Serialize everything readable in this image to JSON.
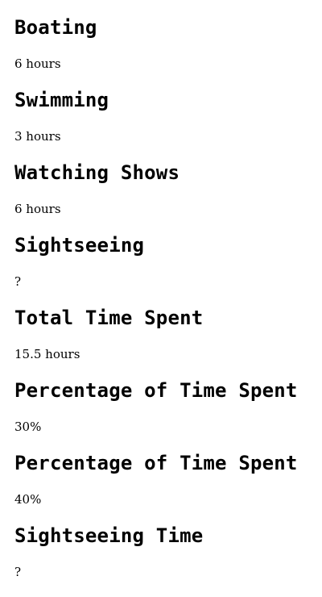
{
  "sections": [
    {
      "heading": "Boating",
      "value": "6 hours"
    },
    {
      "heading": "Swimming",
      "value": "3 hours"
    },
    {
      "heading": "Watching Shows",
      "value": "6 hours"
    },
    {
      "heading": "Sightseeing",
      "value": "?"
    },
    {
      "heading": "Total Time Spent",
      "value": "15.5 hours"
    },
    {
      "heading": "Percentage of Time Spent",
      "value": "30%"
    },
    {
      "heading": "Percentage of Time Spent",
      "value": "40%"
    },
    {
      "heading": "Sightseeing Time",
      "value": "?"
    }
  ]
}
